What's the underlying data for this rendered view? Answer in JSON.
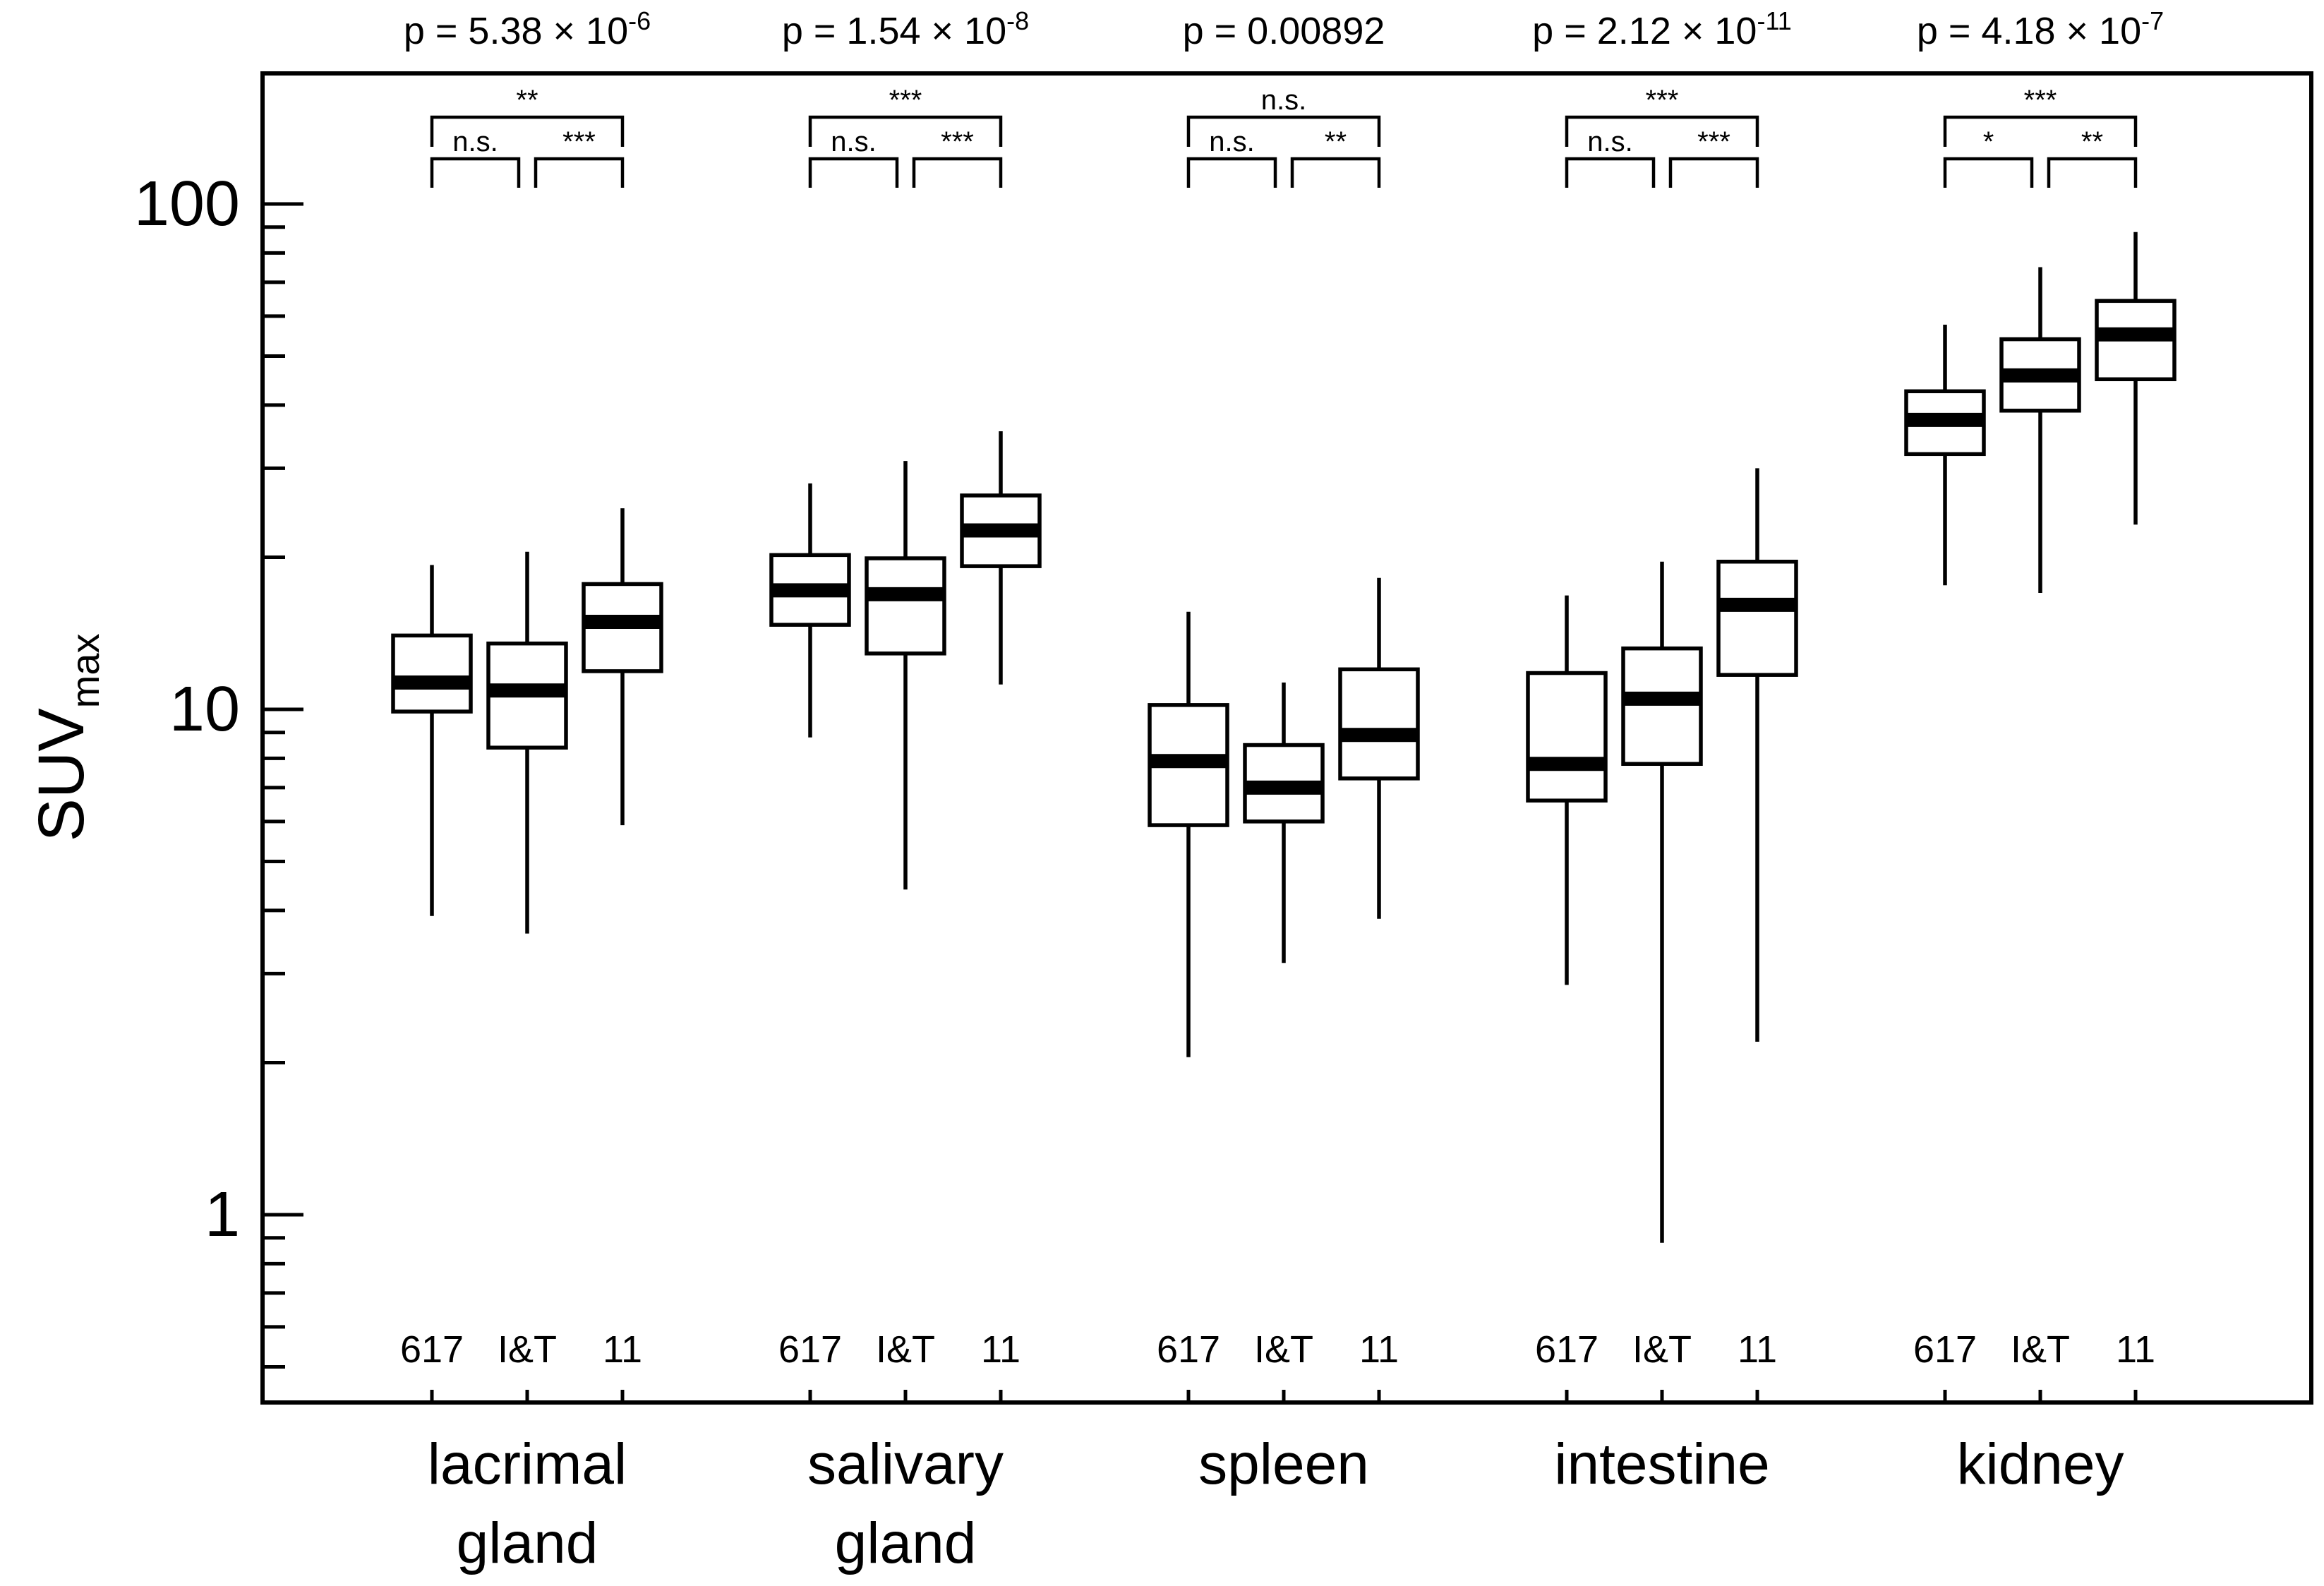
{
  "chart_data": {
    "type": "box",
    "ylabel_main": "SUV",
    "ylabel_sub": "max",
    "yscale": "log",
    "ylim": [
      0.4,
      180
    ],
    "yticks": [
      {
        "value": 1,
        "label": "1"
      },
      {
        "value": 10,
        "label": "10"
      },
      {
        "value": 100,
        "label": "100"
      }
    ],
    "grid": false,
    "tracer_labels": [
      "617",
      "I&T",
      "11"
    ],
    "groups": [
      {
        "name_lines": [
          "lacrimal",
          "gland"
        ],
        "p_base": "p = 5.38 × 10",
        "p_exp": "-6",
        "comparisons": {
          "a_b": "n.s.",
          "b_c": "***",
          "a_c": "**"
        },
        "boxes": [
          {
            "min": 3.9,
            "q1": 9.9,
            "median": 11.3,
            "q3": 14.0,
            "max": 19.3
          },
          {
            "min": 3.6,
            "q1": 8.4,
            "median": 10.9,
            "q3": 13.5,
            "max": 20.5
          },
          {
            "min": 5.9,
            "q1": 11.9,
            "median": 14.9,
            "q3": 17.7,
            "max": 25.0
          }
        ]
      },
      {
        "name_lines": [
          "salivary",
          "gland"
        ],
        "p_base": "p = 1.54 × 10",
        "p_exp": "-8",
        "comparisons": {
          "a_b": "n.s.",
          "b_c": "***",
          "a_c": "***"
        },
        "boxes": [
          {
            "min": 8.8,
            "q1": 14.7,
            "median": 17.2,
            "q3": 20.2,
            "max": 28.0
          },
          {
            "min": 4.4,
            "q1": 12.9,
            "median": 16.9,
            "q3": 19.9,
            "max": 31.0
          },
          {
            "min": 11.2,
            "q1": 19.2,
            "median": 22.6,
            "q3": 26.5,
            "max": 35.5
          }
        ]
      },
      {
        "name_lines": [
          "spleen"
        ],
        "p_base": "p = 0.00892",
        "p_exp": "",
        "comparisons": {
          "a_b": "n.s.",
          "b_c": "**",
          "a_c": "n.s."
        },
        "boxes": [
          {
            "min": 2.05,
            "q1": 5.9,
            "median": 7.9,
            "q3": 10.2,
            "max": 15.6
          },
          {
            "min": 3.15,
            "q1": 6.0,
            "median": 7.0,
            "q3": 8.5,
            "max": 11.3
          },
          {
            "min": 3.85,
            "q1": 7.3,
            "median": 8.9,
            "q3": 12.0,
            "max": 18.2
          }
        ]
      },
      {
        "name_lines": [
          "intestine"
        ],
        "p_base": "p = 2.12 × 10",
        "p_exp": "-11",
        "comparisons": {
          "a_b": "n.s.",
          "b_c": "***",
          "a_c": "***"
        },
        "boxes": [
          {
            "min": 2.85,
            "q1": 6.6,
            "median": 7.8,
            "q3": 11.8,
            "max": 16.8
          },
          {
            "min": 0.88,
            "q1": 7.8,
            "median": 10.5,
            "q3": 13.2,
            "max": 19.6
          },
          {
            "min": 2.2,
            "q1": 11.7,
            "median": 16.1,
            "q3": 19.6,
            "max": 30.0
          }
        ]
      },
      {
        "name_lines": [
          "kidney"
        ],
        "p_base": "p = 4.18 × 10",
        "p_exp": "-7",
        "comparisons": {
          "a_b": "*",
          "b_c": "**",
          "a_c": "***"
        },
        "boxes": [
          {
            "min": 17.6,
            "q1": 32.0,
            "median": 37.4,
            "q3": 42.6,
            "max": 57.7
          },
          {
            "min": 17.0,
            "q1": 39.0,
            "median": 45.8,
            "q3": 54.0,
            "max": 75.0
          },
          {
            "min": 23.2,
            "q1": 45.0,
            "median": 55.2,
            "q3": 64.3,
            "max": 88.0
          }
        ]
      }
    ]
  }
}
